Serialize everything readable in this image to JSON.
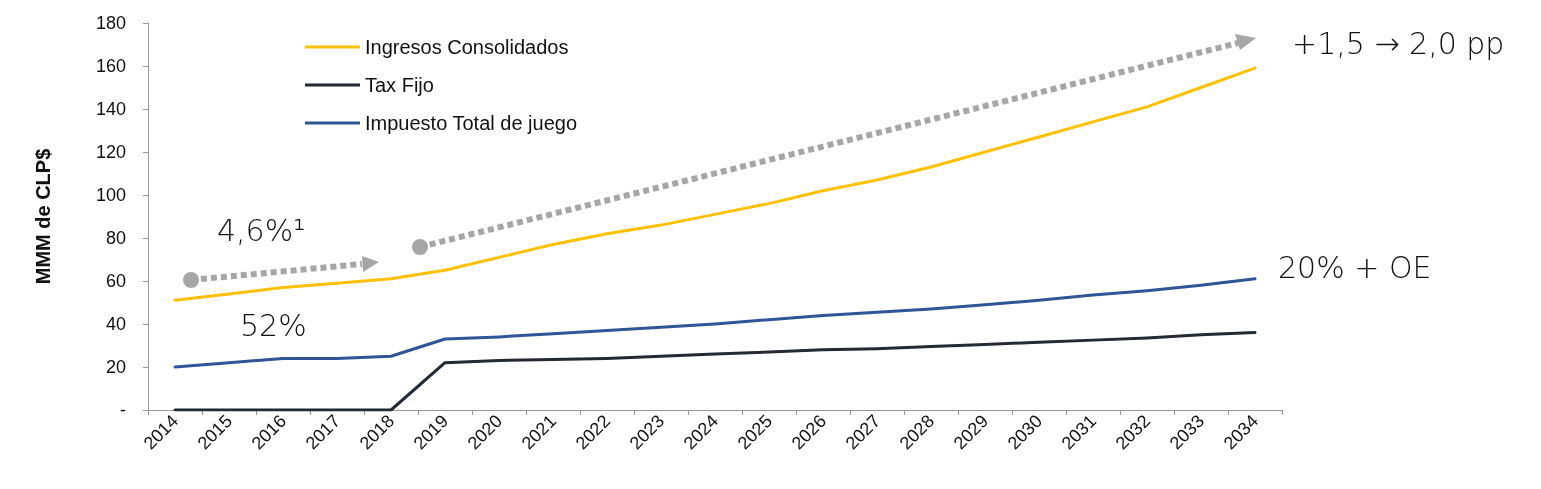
{
  "chart_data": {
    "type": "line",
    "ylabel": "MMM de CLP$",
    "categories": [
      "2014",
      "2015",
      "2016",
      "2017",
      "2018",
      "2019",
      "2020",
      "2021",
      "2022",
      "2023",
      "2024",
      "2025",
      "2026",
      "2027",
      "2028",
      "2029",
      "2030",
      "2031",
      "2032",
      "2033",
      "2034"
    ],
    "series": [
      {
        "name": "Ingresos Consolidados",
        "color": "#ffc000",
        "values": [
          51,
          54,
          57,
          59,
          61,
          65,
          71,
          77,
          82,
          86,
          91,
          96,
          102,
          107,
          113,
          120,
          127,
          134,
          141,
          150,
          159
        ]
      },
      {
        "name": "Tax Fijo",
        "color": "#222a35",
        "values": [
          0,
          0,
          0,
          0,
          0,
          22,
          23,
          23.5,
          24,
          25,
          26,
          27,
          28,
          28.5,
          29.5,
          30.5,
          31.5,
          32.5,
          33.5,
          35,
          36
        ]
      },
      {
        "name": "Impuesto Total de juego",
        "color": "#2f5597",
        "values": [
          20,
          22,
          24,
          24,
          25,
          33,
          34,
          35.5,
          37,
          38.5,
          40,
          42,
          44,
          45.5,
          47,
          49,
          51,
          53.5,
          55.5,
          58,
          61
        ]
      }
    ],
    "ylim": [
      0,
      180
    ],
    "yticks": [
      {
        "value": 0,
        "label": "-"
      },
      20,
      40,
      60,
      80,
      100,
      120,
      140,
      160,
      180
    ],
    "annotations": [
      "4,6%¹",
      "52%",
      "+1,5 → 2,0 pp",
      "20% + OE"
    ],
    "grid": false,
    "legend": "top left",
    "marker": "none",
    "line_style": "solid"
  }
}
